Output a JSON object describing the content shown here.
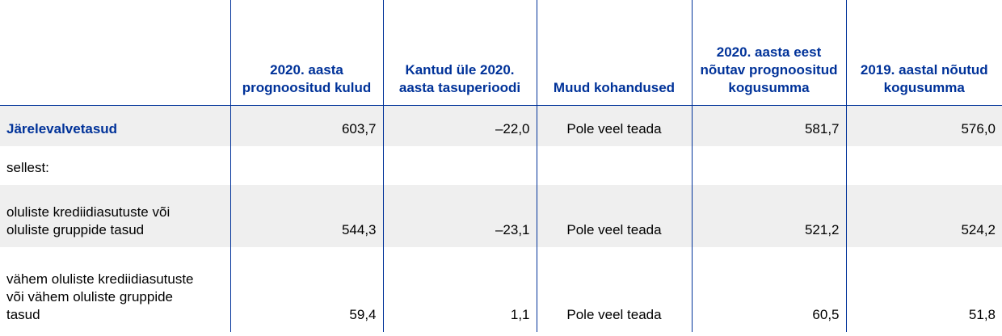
{
  "table": {
    "headers": [
      "",
      "2020. aasta prognoositud kulud",
      "Kantud üle 2020. aasta tasuperioodi",
      "Muud kohandused",
      "2020. aasta eest nõutav prognoositud kogusumma",
      "2019. aastal nõutud kogusumma"
    ],
    "rows": [
      [
        "Järelevalvetasud",
        "603,7",
        "–22,0",
        "Pole veel teada",
        "581,7",
        "576,0"
      ],
      [
        "sellest:",
        null,
        null,
        null,
        null,
        null
      ],
      [
        "oluliste krediidiasutuste või oluliste gruppide tasud",
        "544,3",
        "–23,1",
        "Pole veel teada",
        "521,2",
        "524,2"
      ],
      [
        "vähem oluliste krediidiasutuste või vähem oluliste gruppide tasud",
        "59,4",
        "1,1",
        "Pole veel teada",
        "60,5",
        "51,8"
      ]
    ]
  }
}
